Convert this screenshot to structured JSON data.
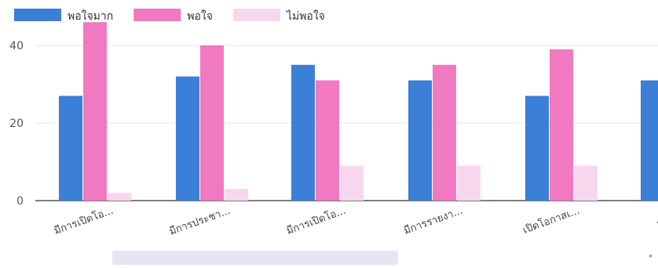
{
  "chart_data": {
    "type": "bar",
    "title": "",
    "xlabel": "",
    "ylabel": "",
    "ylim": [
      0,
      46
    ],
    "yticks": [
      0,
      20,
      40
    ],
    "grid": true,
    "legend_position": "top-left",
    "categories": [
      "มีการเปิดโอ...",
      "มีการประชา...",
      "มีการเปิดโอ...",
      "มีการรายงา...",
      "เปิดโอกาสเ...",
      "การดำเนิ"
    ],
    "series": [
      {
        "name": "พอใจมาก",
        "color": "#3b7fd6",
        "values": [
          27,
          32,
          35,
          31,
          27,
          31
        ]
      },
      {
        "name": "พอใจ",
        "color": "#f079c0",
        "values": [
          46,
          40,
          31,
          35,
          39,
          null
        ]
      },
      {
        "name": "ไม่พอใจ",
        "color": "#f7d7ee",
        "values": [
          2,
          3,
          9,
          9,
          9,
          null
        ]
      }
    ]
  }
}
